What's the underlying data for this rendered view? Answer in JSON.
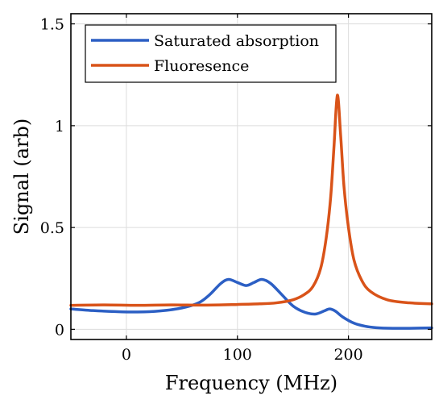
{
  "chart_data": {
    "type": "line",
    "title": "",
    "xlabel": "Frequency (MHz)",
    "ylabel": "Signal (arb)",
    "xlim": [
      -50,
      275
    ],
    "ylim": [
      -0.05,
      1.55
    ],
    "x_ticks": [
      0,
      100,
      200
    ],
    "x_tick_labels": [
      "0",
      "100",
      "200"
    ],
    "y_ticks": [
      0,
      0.5,
      1,
      1.5
    ],
    "y_tick_labels": [
      "0",
      "0.5",
      "1",
      "1.5"
    ],
    "grid": true,
    "legend_position": "top-left",
    "series": [
      {
        "name": "Saturated absorption",
        "color": "#2c5fc4",
        "x": [
          -50,
          -30,
          -10,
          10,
          30,
          50,
          65,
          75,
          85,
          92,
          100,
          108,
          115,
          122,
          130,
          140,
          150,
          160,
          170,
          178,
          183,
          188,
          195,
          205,
          215,
          225,
          240,
          255,
          275
        ],
        "y": [
          0.1,
          0.092,
          0.087,
          0.085,
          0.09,
          0.105,
          0.13,
          0.17,
          0.225,
          0.245,
          0.23,
          0.215,
          0.23,
          0.245,
          0.225,
          0.17,
          0.115,
          0.085,
          0.075,
          0.09,
          0.1,
          0.09,
          0.06,
          0.03,
          0.015,
          0.008,
          0.005,
          0.005,
          0.007
        ]
      },
      {
        "name": "Fluoresence",
        "color": "#d95319",
        "x": [
          -50,
          -20,
          10,
          40,
          70,
          100,
          120,
          135,
          150,
          160,
          168,
          175,
          180,
          184,
          187,
          190,
          193,
          196,
          200,
          205,
          212,
          220,
          235,
          255,
          275
        ],
        "y": [
          0.118,
          0.12,
          0.118,
          0.12,
          0.119,
          0.122,
          0.125,
          0.13,
          0.145,
          0.17,
          0.21,
          0.3,
          0.45,
          0.65,
          0.9,
          1.15,
          0.95,
          0.7,
          0.5,
          0.34,
          0.24,
          0.185,
          0.145,
          0.13,
          0.125
        ]
      }
    ]
  }
}
